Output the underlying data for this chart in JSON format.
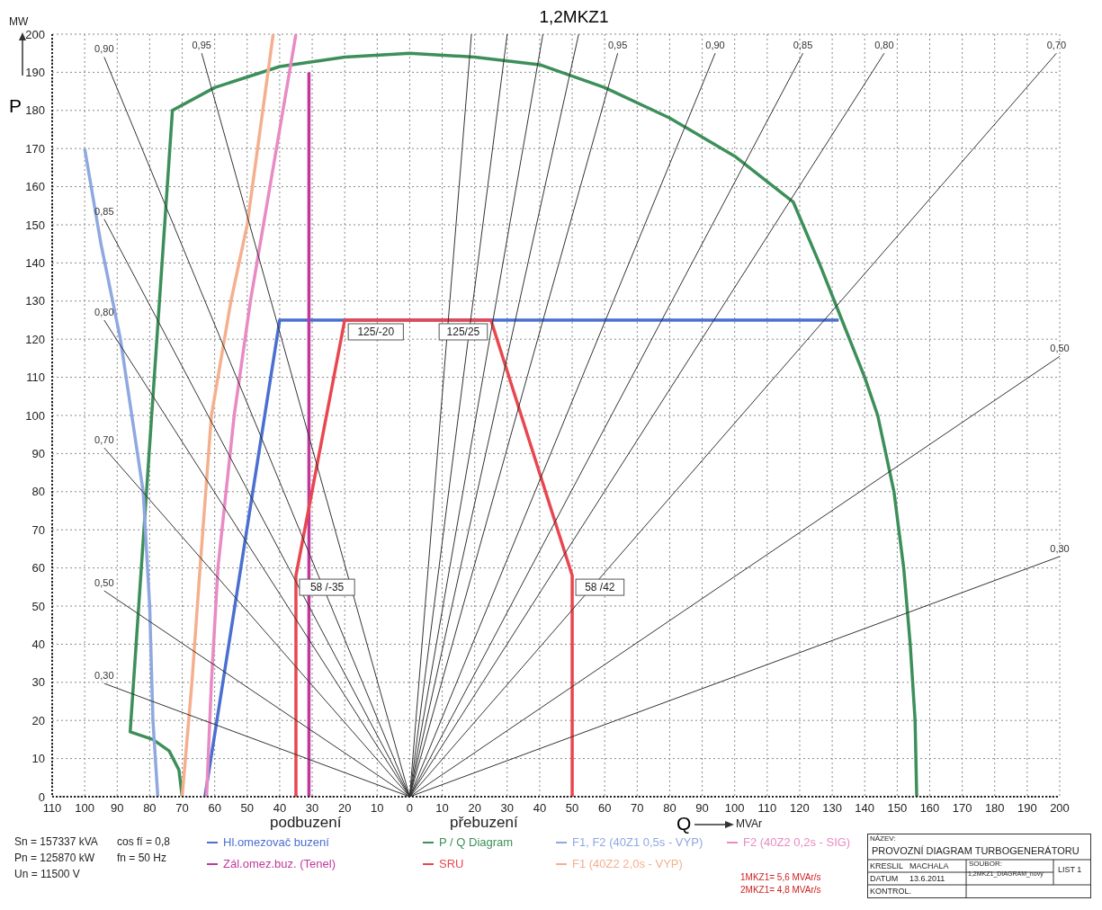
{
  "chart_data": {
    "type": "line",
    "title": "1,2MKZ1",
    "xlabel": "Q",
    "ylabel": "P",
    "xlim": [
      -110,
      200
    ],
    "ylim": [
      0,
      200
    ],
    "xticks": [
      {
        "value": -110,
        "label": "110"
      },
      {
        "value": -100,
        "label": "100"
      },
      {
        "value": -90,
        "label": "90"
      },
      {
        "value": -80,
        "label": "80"
      },
      {
        "value": -70,
        "label": "70"
      },
      {
        "value": -60,
        "label": "60"
      },
      {
        "value": -50,
        "label": "50"
      },
      {
        "value": -40,
        "label": "40"
      },
      {
        "value": -30,
        "label": "30"
      },
      {
        "value": -20,
        "label": "20"
      },
      {
        "value": -10,
        "label": "10"
      },
      0,
      10,
      20,
      30,
      40,
      50,
      60,
      70,
      80,
      90,
      100,
      110,
      120,
      130,
      140,
      150,
      160,
      170,
      180,
      190,
      200
    ],
    "yticks": [
      0,
      10,
      20,
      30,
      40,
      50,
      60,
      70,
      80,
      90,
      100,
      110,
      120,
      130,
      140,
      150,
      160,
      170,
      180,
      190,
      200
    ],
    "grid": true,
    "legend": "bottom",
    "series": [
      {
        "name": "Hl.omezovač buzení",
        "color": "#4a6fd0",
        "x": [
          -63,
          -40,
          132
        ],
        "values": [
          0,
          125,
          125
        ]
      },
      {
        "name": "Zál.omez.buz. (Tenel)",
        "color": "#c0399a",
        "x": [
          -31,
          -31
        ],
        "values": [
          0,
          190
        ]
      },
      {
        "name": "P / Q Diagram",
        "color": "#3d8f5a",
        "x": [
          -70,
          -71,
          -74,
          -79,
          -86,
          -73,
          -60,
          -40,
          -20,
          0,
          20,
          40,
          60,
          80,
          100,
          118,
          126,
          133,
          140,
          144,
          149,
          152,
          154,
          155.5,
          156
        ],
        "values": [
          0,
          7,
          12,
          15,
          17,
          180,
          186,
          191.5,
          194,
          195,
          194,
          192,
          186,
          178,
          168,
          156,
          140,
          125,
          110,
          100,
          80,
          60,
          40,
          20,
          0
        ]
      },
      {
        "name": "SRU",
        "color": "#e8474f",
        "x": [
          -35,
          -35,
          -20,
          25,
          50,
          50
        ],
        "values": [
          0,
          58,
          125,
          125,
          58,
          0
        ],
        "value_labels": [
          null,
          "58 /-35",
          "125/-20",
          "125/25",
          "58 /42",
          null
        ]
      },
      {
        "name": "F1, F2 (40Z1 0,5s - VYP)",
        "color": "#8fa8e0",
        "x": [
          -100,
          -95,
          -89,
          -82,
          -80,
          -79,
          -77.5
        ],
        "values": [
          170,
          145,
          120,
          80,
          50,
          20,
          0
        ]
      },
      {
        "name": "F1 (40Z2 2,0s - VYP)",
        "color": "#f4b08e",
        "x": [
          -70,
          -67,
          -64.5,
          -61,
          -55,
          -50,
          -46,
          -42
        ],
        "values": [
          0,
          30,
          60,
          100,
          130,
          150,
          175,
          200
        ]
      },
      {
        "name": "F2 (40Z2 0,2s - SIG)",
        "color": "#e88ac4",
        "x": [
          -62.5,
          -61,
          -59,
          -54,
          -49,
          -45,
          -40,
          -35
        ],
        "values": [
          0,
          30,
          60,
          100,
          130,
          150,
          175,
          200
        ]
      },
      {
        "color": "#333333",
        "x": [
          0,
          -64
        ],
        "values": [
          0,
          195
        ]
      },
      {
        "color": "#333333",
        "x": [
          0,
          -94
        ],
        "values": [
          0,
          194
        ]
      },
      {
        "color": "#333333",
        "x": [
          0,
          -94
        ],
        "values": [
          0,
          151.5
        ]
      },
      {
        "color": "#333333",
        "x": [
          0,
          -94
        ],
        "values": [
          0,
          125
        ]
      },
      {
        "color": "#333333",
        "x": [
          0,
          -94
        ],
        "values": [
          0,
          91.5
        ]
      },
      {
        "color": "#333333",
        "x": [
          0,
          -94
        ],
        "values": [
          0,
          54
        ]
      },
      {
        "color": "#333333",
        "x": [
          0,
          -94
        ],
        "values": [
          0,
          29.7
        ]
      },
      {
        "color": "#333333",
        "x": [
          0,
          19
        ],
        "values": [
          0,
          200
        ]
      },
      {
        "color": "#333333",
        "x": [
          0,
          30
        ],
        "values": [
          0,
          200
        ]
      },
      {
        "color": "#333333",
        "x": [
          0,
          41
        ],
        "values": [
          0,
          200
        ]
      },
      {
        "color": "#333333",
        "x": [
          0,
          52
        ],
        "values": [
          0,
          200
        ]
      },
      {
        "color": "#333333",
        "x": [
          0,
          64
        ],
        "values": [
          0,
          195
        ]
      },
      {
        "color": "#333333",
        "x": [
          0,
          94
        ],
        "values": [
          0,
          195
        ]
      },
      {
        "color": "#333333",
        "x": [
          0,
          121
        ],
        "values": [
          0,
          195
        ]
      },
      {
        "color": "#333333",
        "x": [
          0,
          146
        ],
        "values": [
          0,
          195
        ]
      },
      {
        "color": "#333333",
        "x": [
          0,
          199
        ],
        "values": [
          0,
          195
        ]
      },
      {
        "color": "#333333",
        "x": [
          0,
          200
        ],
        "values": [
          0,
          115.5
        ]
      },
      {
        "color": "#333333",
        "x": [
          0,
          200
        ],
        "values": [
          0,
          63
        ]
      }
    ],
    "annotations": [
      "podbuzení",
      "přebuzení",
      "Sn = 157337 kVA",
      "Pn = 125870 kW",
      "Un = 11500 V",
      "cos fí = 0,8",
      "fn = 50 Hz",
      "1MKZ1= 5,6 MVAr/s",
      "2MKZ1= 4,8 MVAr/s",
      "MW",
      "MVAr",
      "NÁZEV:",
      "PROVOZNÍ DIAGRAM TURBOGENERÁTORU",
      "KRESLIL",
      "MACHALA",
      "DATUM",
      "13.6.2011",
      "SOUBOR:",
      "1,2MKZ1_DIAGRAM_novy",
      "LIST 1",
      "KONTROL.",
      {
        "text": "0,95",
        "x": -64,
        "y": 195
      },
      {
        "text": "0,90",
        "x": -94,
        "y": 194
      },
      {
        "text": "0,85",
        "x": -94,
        "y": 151.5
      },
      {
        "text": "0,80",
        "x": -94,
        "y": 125
      },
      {
        "text": "0,70",
        "x": -94,
        "y": 91.5
      },
      {
        "text": "0,50",
        "x": -94,
        "y": 54
      },
      {
        "text": "0,30",
        "x": -94,
        "y": 29.7
      },
      {
        "text": "0,95",
        "x": 64,
        "y": 195
      },
      {
        "text": "0,90",
        "x": 94,
        "y": 195
      },
      {
        "text": "0,85",
        "x": 121,
        "y": 195
      },
      {
        "text": "0,80",
        "x": 146,
        "y": 195
      },
      {
        "text": "0,70",
        "x": 199,
        "y": 195
      },
      {
        "text": "0,50",
        "x": 200,
        "y": 115.5
      },
      {
        "text": "0,30",
        "x": 200,
        "y": 63
      }
    ]
  }
}
